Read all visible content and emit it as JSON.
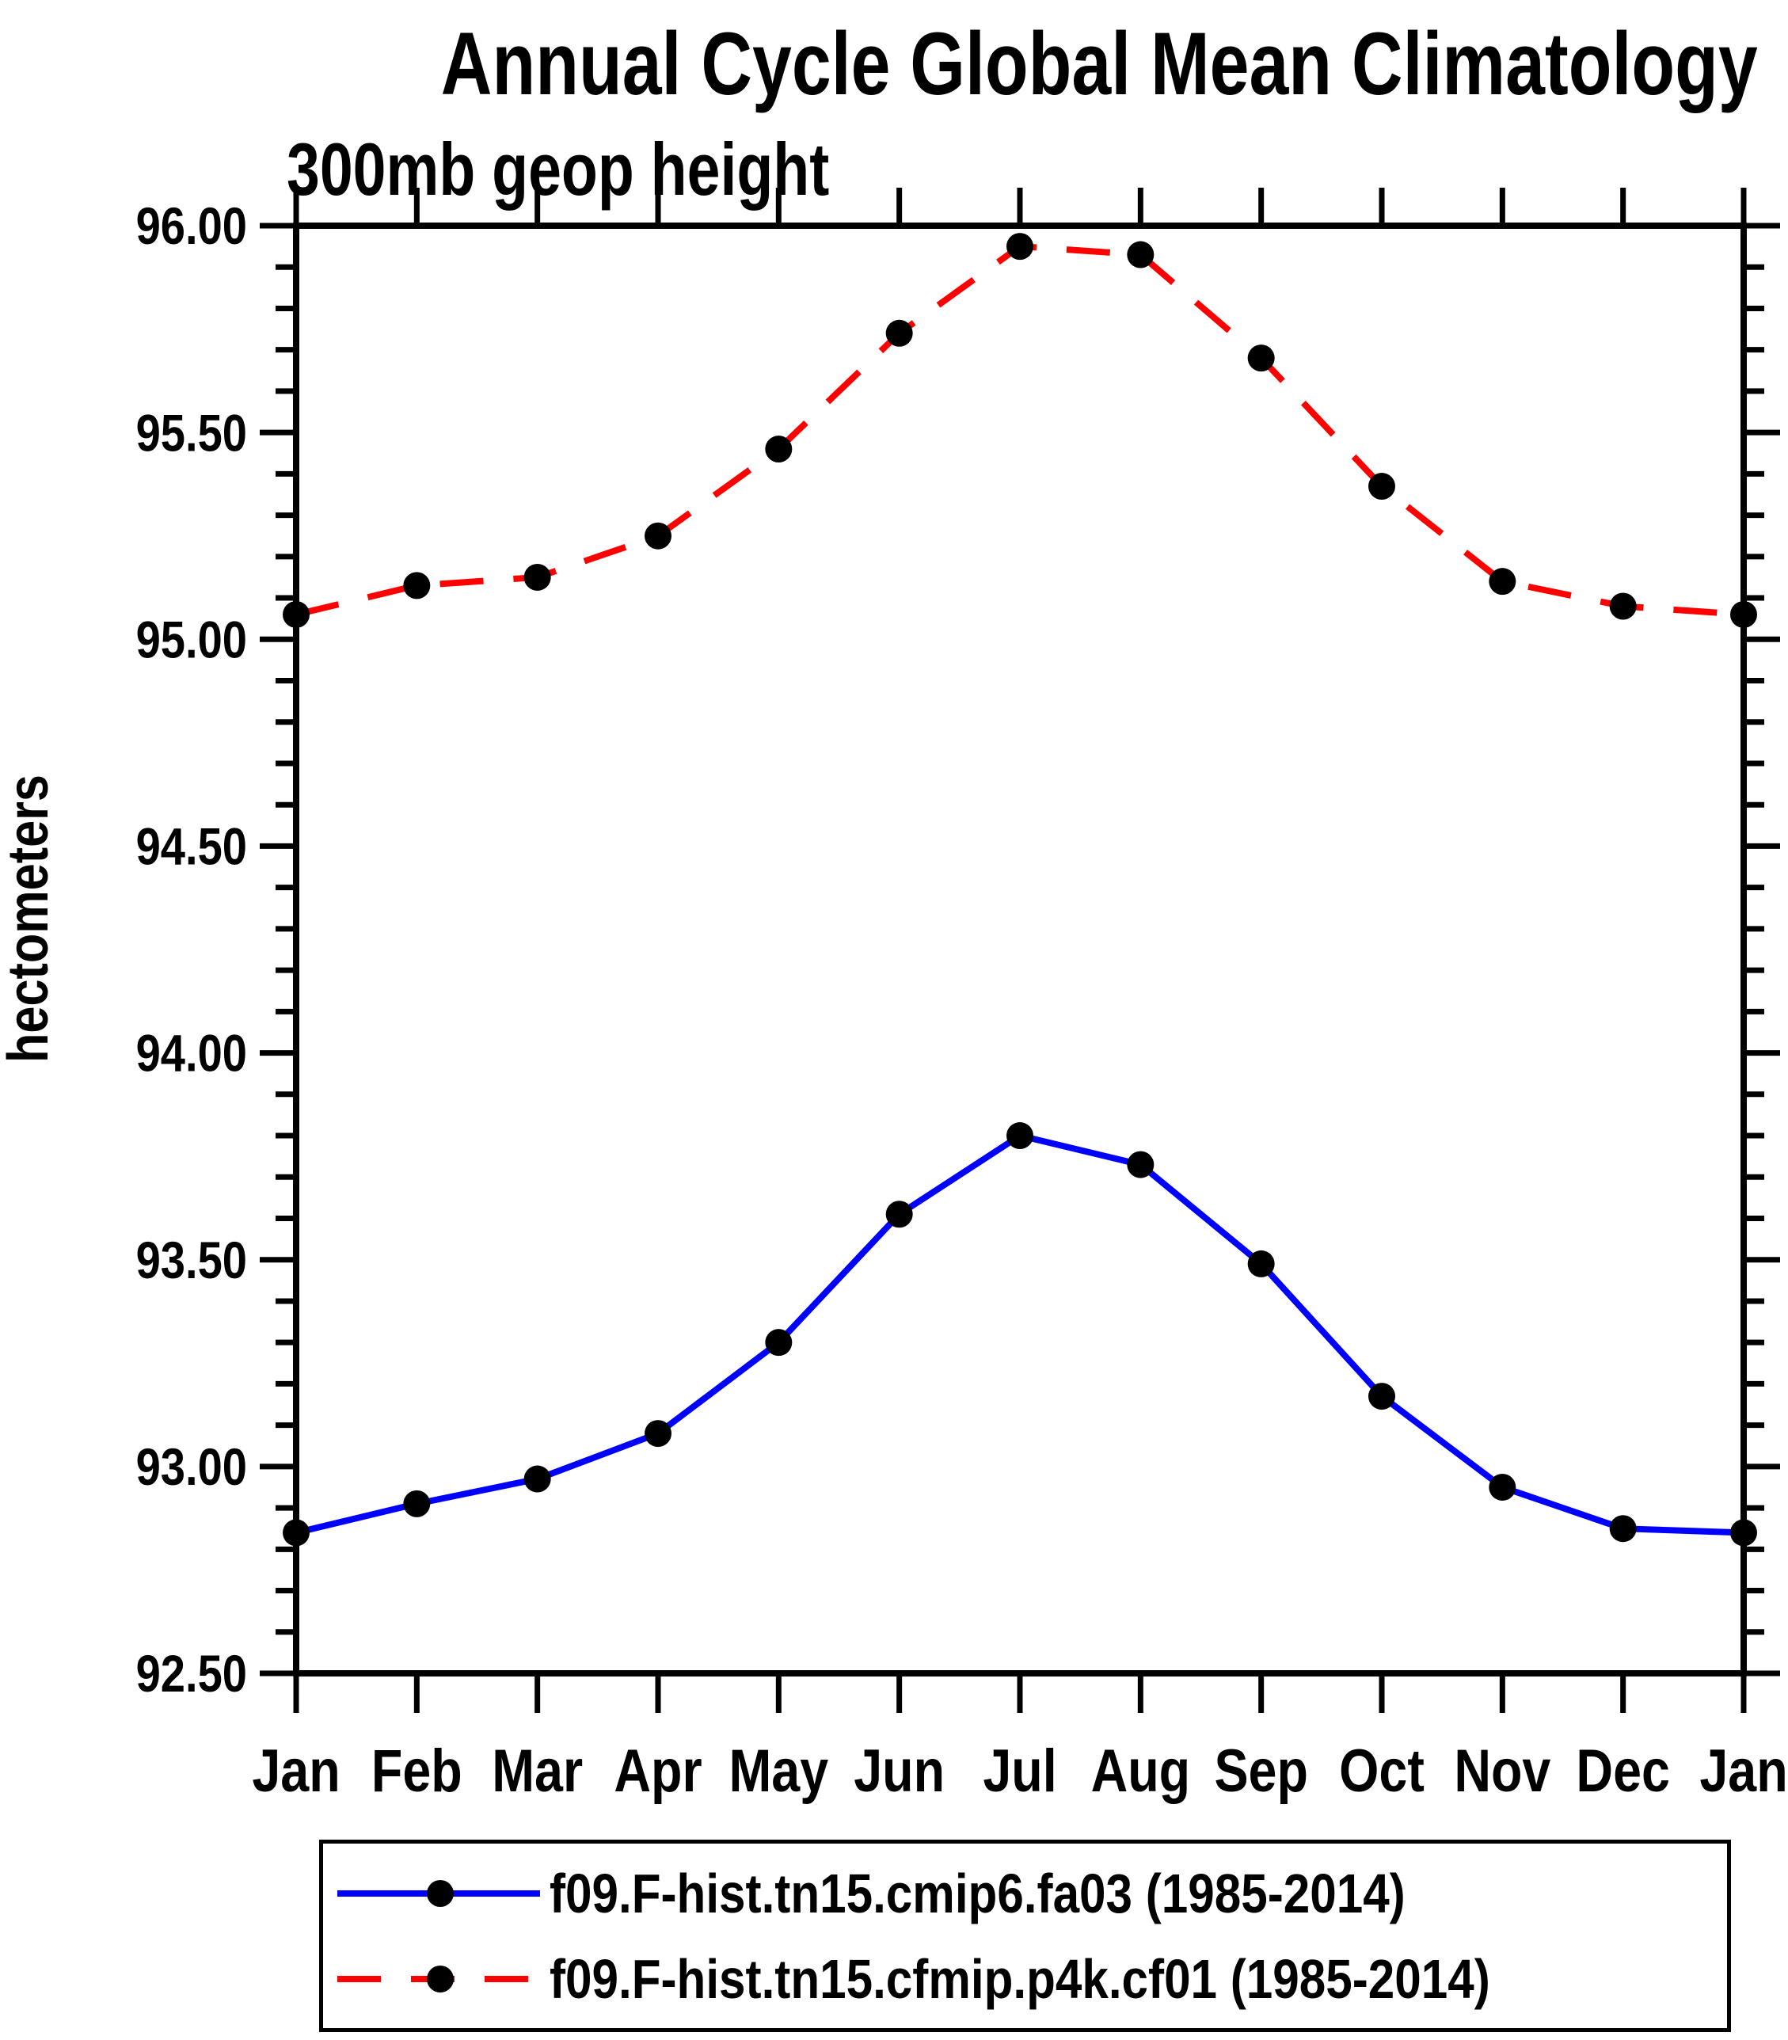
{
  "title": "Annual Cycle Global Mean Climatology",
  "subtitle": "300mb geop height",
  "y_axis_label": "hectometers",
  "legend": {
    "items": [
      {
        "label": "f09.F-hist.tn15.cmip6.fa03 (1985-2014)",
        "color": "#0000FF",
        "line_style": "solid",
        "marker": "filled-circle"
      },
      {
        "label": "f09.F-hist.tn15.cfmip.p4k.cf01 (1985-2014)",
        "color": "#FF0000",
        "line_style": "dashed",
        "marker": "filled-circle"
      }
    ]
  },
  "chart_data": {
    "type": "line",
    "title": "Annual Cycle Global Mean Climatology",
    "subtitle": "300mb geop height",
    "ylabel": "hectometers",
    "categories": [
      "Jan",
      "Feb",
      "Mar",
      "Apr",
      "May",
      "Jun",
      "Jul",
      "Aug",
      "Sep",
      "Oct",
      "Nov",
      "Dec",
      "Jan"
    ],
    "series": [
      {
        "name": "f09.F-hist.tn15.cmip6.fa03 (1985-2014)",
        "color": "#0000FF",
        "line_style": "solid",
        "values": [
          92.84,
          92.91,
          92.97,
          93.08,
          93.3,
          93.61,
          93.8,
          93.73,
          93.49,
          93.17,
          92.95,
          92.85,
          92.84
        ]
      },
      {
        "name": "f09.F-hist.tn15.cfmip.p4k.cf01 (1985-2014)",
        "color": "#FF0000",
        "line_style": "dashed",
        "values": [
          95.06,
          95.13,
          95.15,
          95.25,
          95.46,
          95.74,
          95.95,
          95.93,
          95.68,
          95.37,
          95.14,
          95.08,
          95.06
        ]
      }
    ],
    "marker": "filled-circle",
    "marker_color": "#000000",
    "ylim": [
      92.5,
      96.0
    ],
    "y_major_step": 0.5,
    "y_minor_step": 0.1,
    "y_tick_labels": [
      "92.50",
      "93.00",
      "93.50",
      "94.00",
      "94.50",
      "95.00",
      "95.50",
      "96.00"
    ],
    "grid": false,
    "legend_position": "bottom"
  }
}
